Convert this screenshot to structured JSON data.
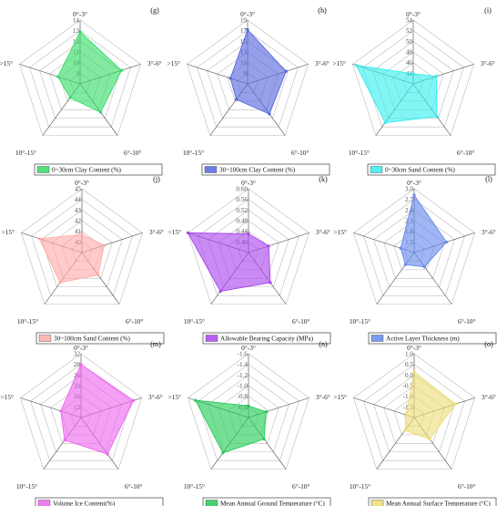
{
  "chart_data": [
    {
      "type": "radar",
      "panel": "(g)",
      "color": "#33dd66",
      "axes": [
        "0°-3°",
        "3°-6°",
        "6°-10°",
        "10°-15°",
        ">15°"
      ],
      "ticks": [
        9,
        10,
        11,
        12,
        13,
        14
      ],
      "rlim": [
        8,
        14
      ],
      "values": [
        12.9,
        12.1,
        11.3,
        9.6,
        10.2
      ],
      "legend": "0~30cm Clay Content (%)"
    },
    {
      "type": "radar",
      "panel": "(h)",
      "color": "#5566dd",
      "axes": [
        "0°-3°",
        "3°-6°",
        "6°-10°",
        "10°-15°",
        ">15°"
      ],
      "ticks": [
        9,
        11,
        13,
        15,
        17,
        19
      ],
      "rlim": [
        7,
        19
      ],
      "values": [
        17.2,
        14.6,
        14.0,
        10.6,
        10.4
      ],
      "legend": "30~100cm Clay Content (%)"
    },
    {
      "type": "radar",
      "panel": "(i)",
      "color": "#33eeee",
      "axes": [
        "0°-3°",
        "3°-6°",
        "6°-10°",
        "10°-15°",
        ">15°"
      ],
      "ticks": [
        44,
        46,
        48,
        50,
        52,
        54
      ],
      "rlim": [
        42,
        54
      ],
      "values": [
        43.9,
        46.6,
        49.6,
        51.0,
        53.3
      ],
      "legend": "0~30cm Sand Content (%)"
    },
    {
      "type": "radar",
      "panel": "(j)",
      "color": "#ffaaaa",
      "axes": [
        "0°-3°",
        "3°-6°",
        "6°-10°",
        "10°-15°",
        ">15°"
      ],
      "ticks": [
        40,
        41,
        42,
        43,
        44,
        45
      ],
      "rlim": [
        39,
        45
      ],
      "values": [
        40.7,
        41.2,
        41.6,
        42.5,
        43.2
      ],
      "legend": "30~100cm Sand Content (%)"
    },
    {
      "type": "radar",
      "panel": "(k)",
      "color": "#aa44ee",
      "axes": [
        "0°-3°",
        "3°-6°",
        "6°-10°",
        "10°-15°",
        ">15°"
      ],
      "ticks": [
        0.4,
        0.44,
        0.48,
        0.52,
        0.56,
        0.6
      ],
      "rlim": [
        0.36,
        0.6
      ],
      "values": [
        0.43,
        0.44,
        0.5,
        0.54,
        0.6
      ],
      "legend": "Allowable Bearing Capacity (MPa)"
    },
    {
      "type": "radar",
      "panel": "(l)",
      "color": "#6688ee",
      "axes": [
        "0°-3°",
        "3°-6°",
        "6°-10°",
        "10°-15°",
        ">15°"
      ],
      "ticks": [
        1.5,
        1.8,
        2.1,
        2.4,
        2.7,
        3.0
      ],
      "rlim": [
        1.2,
        3.0
      ],
      "values": [
        2.82,
        2.16,
        1.7,
        1.62,
        1.6
      ],
      "legend": "Active Layer Thickness (m)"
    },
    {
      "type": "radar",
      "panel": "(m)",
      "color": "#ee66ee",
      "axes": [
        "0°-3°",
        "3°-6°",
        "6°-10°",
        "10°-15°",
        ">15°"
      ],
      "ticks": [
        12,
        16,
        20,
        24,
        28,
        32
      ],
      "rlim": [
        8,
        32
      ],
      "values": [
        28.0,
        28.8,
        25.0,
        18.5,
        16.0
      ],
      "legend": "Volume Ice Content(%)"
    },
    {
      "type": "radar",
      "panel": "(n)",
      "color": "#22cc55",
      "axes": [
        "0°-3°",
        "3°-6°",
        "6°-10°",
        "10°-15°",
        ">15°"
      ],
      "ticks": [
        -0.6,
        -0.8,
        -1.0,
        -1.2,
        -1.4,
        -1.6
      ],
      "rlim": [
        -0.4,
        -1.6
      ],
      "values": [
        -0.62,
        -0.75,
        -0.9,
        -1.22,
        -1.45
      ],
      "legend": "Mean Annual Ground Temperature (°C)"
    },
    {
      "type": "radar",
      "panel": "(o)",
      "color": "#eedd77",
      "axes": [
        "0°-3°",
        "3°-6°",
        "6°-10°",
        "10°-15°",
        ">15°"
      ],
      "ticks": [
        -1.5,
        -1.0,
        -0.5,
        0.0,
        0.5,
        1.0
      ],
      "rlim": [
        -2.0,
        1.0
      ],
      "values": [
        0.15,
        0.05,
        -0.75,
        -1.25,
        -1.6
      ],
      "legend": "Mean Annual Surface Temperature (°C)"
    }
  ]
}
